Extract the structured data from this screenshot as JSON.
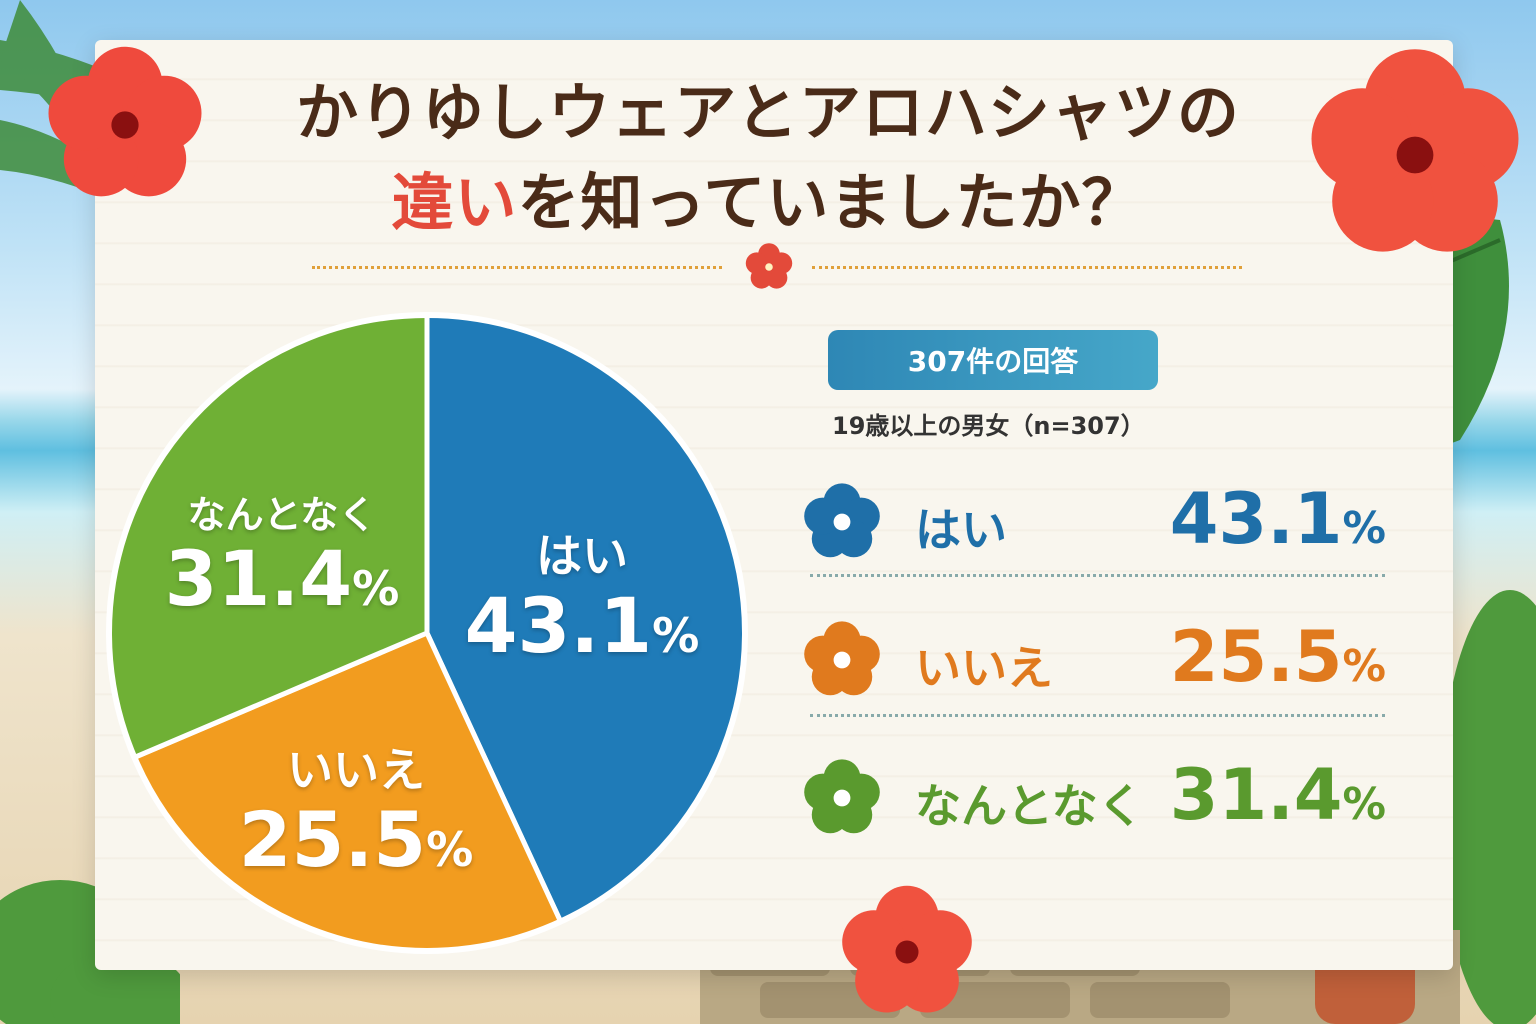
{
  "title": {
    "line1": "かりゆしウェアとアロハシャツの",
    "line2_accent": "違い",
    "line2_rest": "を知っていましたか？"
  },
  "summary": {
    "count_label": "307件の回答",
    "sample_label": "19歳以上の男女（n=307）"
  },
  "chart_data": {
    "type": "pie",
    "title": "かりゆしウェアとアロハシャツの違いを知っていましたか？",
    "unit": "%",
    "n": 307,
    "slices": [
      {
        "label": "はい",
        "value": 43.1,
        "color": "#1f7bb8"
      },
      {
        "label": "いいえ",
        "value": 25.5,
        "color": "#f29c1f"
      },
      {
        "label": "なんとなく",
        "value": 31.4,
        "color": "#6fb035"
      }
    ]
  },
  "legend": [
    {
      "label": "はい",
      "value_text": "43.1",
      "pct_sign": "%",
      "color": "#1f6fa8"
    },
    {
      "label": "いいえ",
      "value_text": "25.5",
      "pct_sign": "%",
      "color": "#e07a1e"
    },
    {
      "label": "なんとなく",
      "value_text": "31.4",
      "pct_sign": "%",
      "color": "#5a9a2e"
    }
  ],
  "pie_labels": [
    {
      "name": "はい",
      "pct": "43.1",
      "sign": "%"
    },
    {
      "name": "いいえ",
      "pct": "25.5",
      "sign": "%"
    },
    {
      "name": "なんとなく",
      "pct": "31.4",
      "sign": "%"
    }
  ],
  "icons": {
    "divider": "hibiscus-icon",
    "rows": [
      "hibiscus-icon",
      "hibiscus-icon",
      "hibiscus-icon"
    ],
    "decor": [
      "hibiscus-flower",
      "palm-leaf",
      "monstera-leaf",
      "shisa-statue"
    ]
  }
}
